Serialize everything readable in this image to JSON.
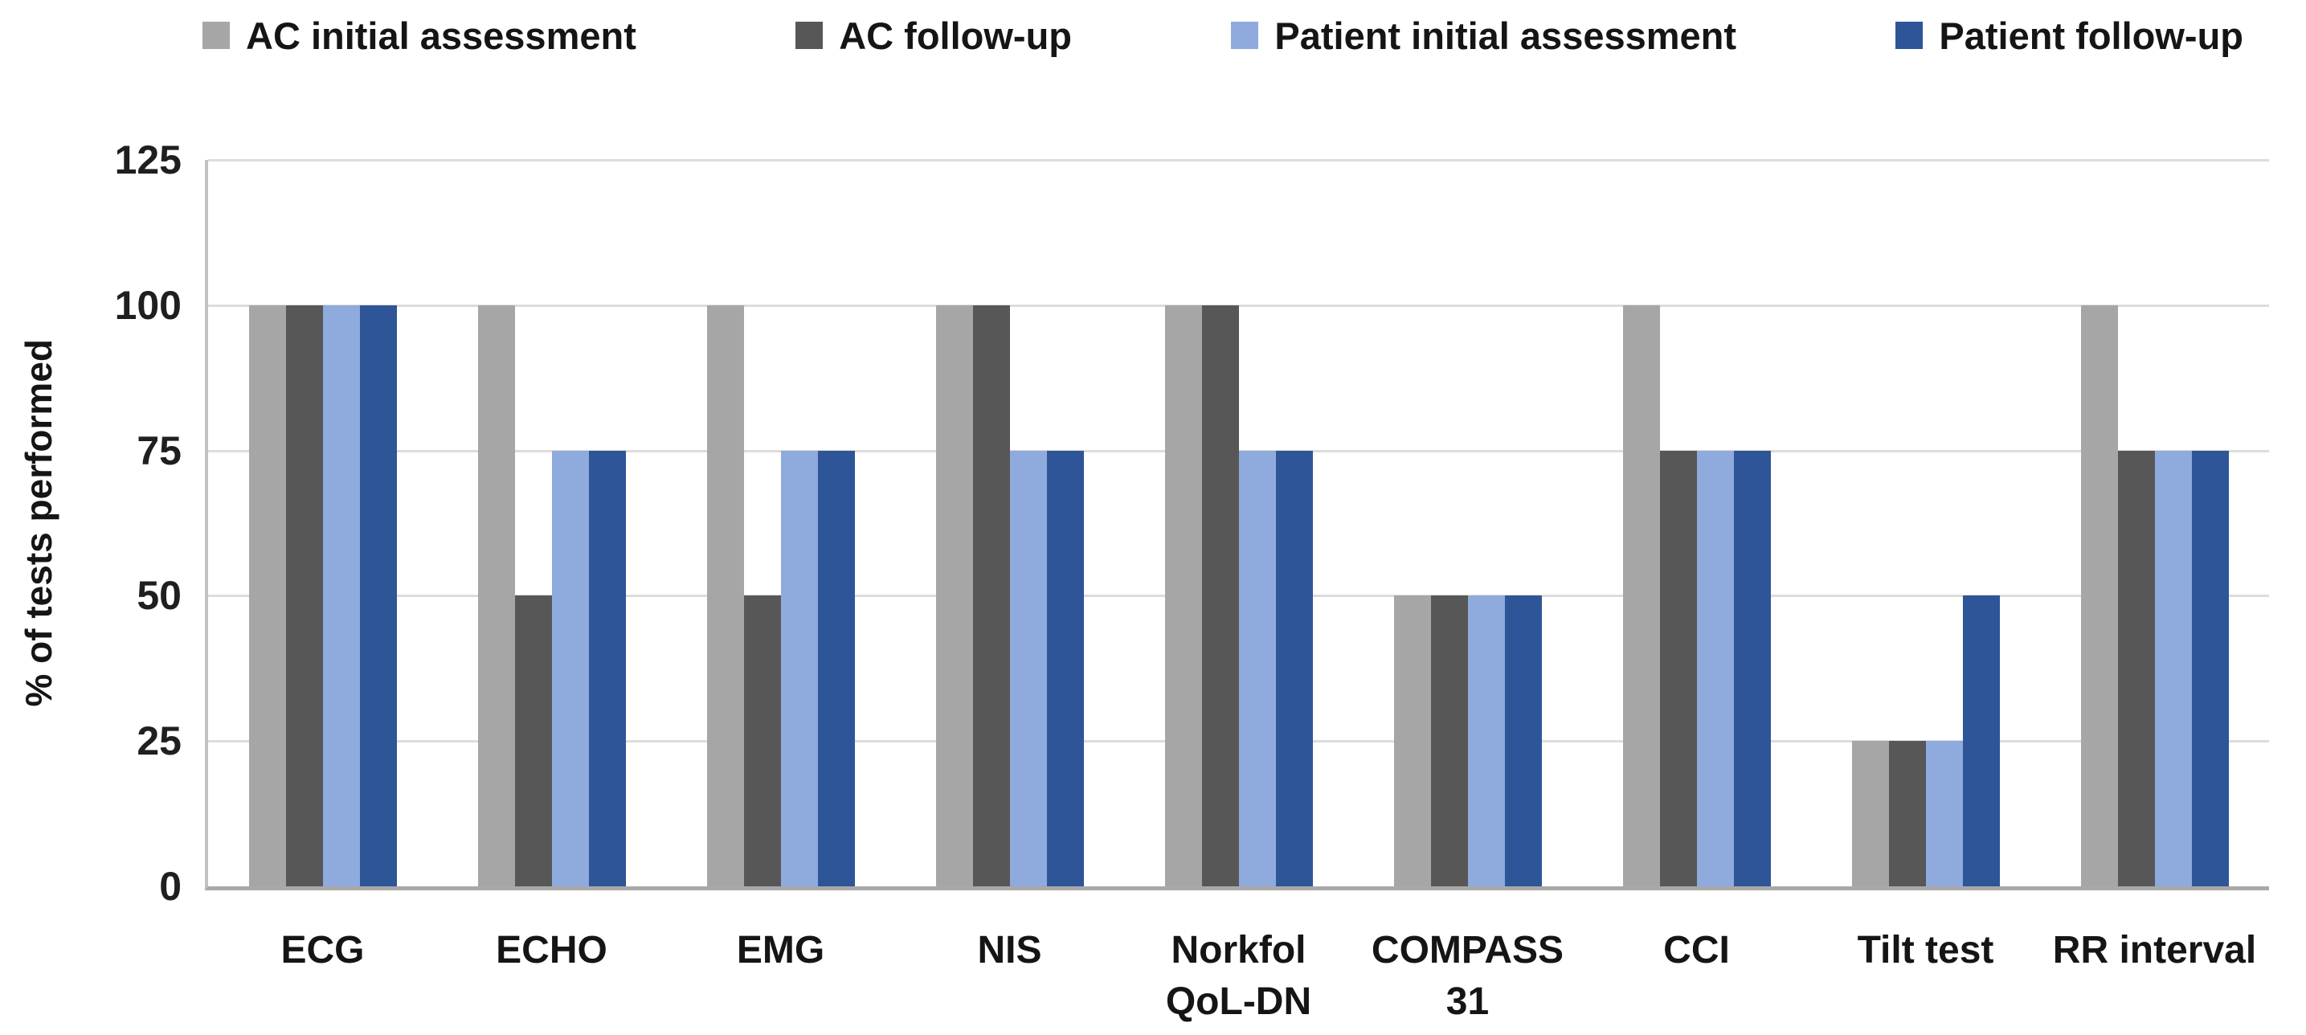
{
  "chart_data": {
    "type": "bar",
    "title": "",
    "xlabel": "",
    "ylabel": "% of tests performed",
    "ylim": [
      0,
      125
    ],
    "yticks": [
      0,
      25,
      50,
      75,
      100,
      125
    ],
    "grid": true,
    "legend_position": "top",
    "categories": [
      "ECG",
      "ECHO",
      "EMG",
      "NIS",
      "Norkfol\nQoL-DN",
      "COMPASS\n31",
      "CCI",
      "Tilt test",
      "RR interval"
    ],
    "series": [
      {
        "name": "AC initial assessment",
        "color": "#a6a6a6",
        "values": [
          100,
          100,
          100,
          100,
          100,
          50,
          100,
          25,
          100
        ]
      },
      {
        "name": "AC follow-up",
        "color": "#575757",
        "values": [
          100,
          50,
          50,
          100,
          100,
          50,
          75,
          25,
          75
        ]
      },
      {
        "name": "Patient initial assessment",
        "color": "#8faadc",
        "values": [
          100,
          75,
          75,
          75,
          75,
          50,
          75,
          25,
          75
        ]
      },
      {
        "name": "Patient follow-up",
        "color": "#2e5597",
        "values": [
          100,
          75,
          75,
          75,
          75,
          50,
          75,
          50,
          75
        ]
      }
    ]
  },
  "colors": {
    "gridline": "#dcdcdc",
    "axis_left": "#c2c2c2",
    "axis_bottom": "#a9a9a9",
    "text": "#151515",
    "background": "#ffffff"
  }
}
